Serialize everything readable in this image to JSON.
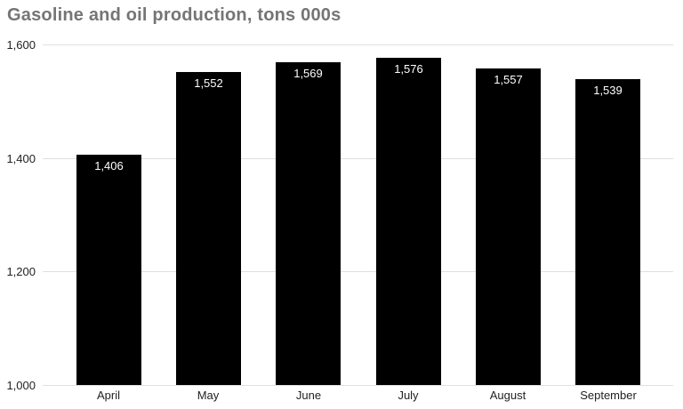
{
  "chart_data": {
    "type": "bar",
    "title": "Gasoline and oil production, tons 000s",
    "categories": [
      "April",
      "May",
      "June",
      "July",
      "August",
      "September"
    ],
    "values": [
      1406,
      1552,
      1569,
      1576,
      1557,
      1539
    ],
    "value_labels": [
      "1,406",
      "1,552",
      "1,569",
      "1,576",
      "1,557",
      "1,539"
    ],
    "y_ticks": [
      1000,
      1200,
      1400,
      1600
    ],
    "y_tick_labels": [
      "1,000",
      "1,200",
      "1,400",
      "1,600"
    ],
    "ylim": [
      1000,
      1600
    ],
    "xlabel": "",
    "ylabel": "",
    "legend": "none",
    "grid": "horizontal",
    "colors": {
      "bar": "#000000",
      "bar_value_label": "#ffffff",
      "gridline": "#e0e0e0",
      "title": "#757575",
      "axis_text": "#222222",
      "background": "#ffffff"
    }
  }
}
